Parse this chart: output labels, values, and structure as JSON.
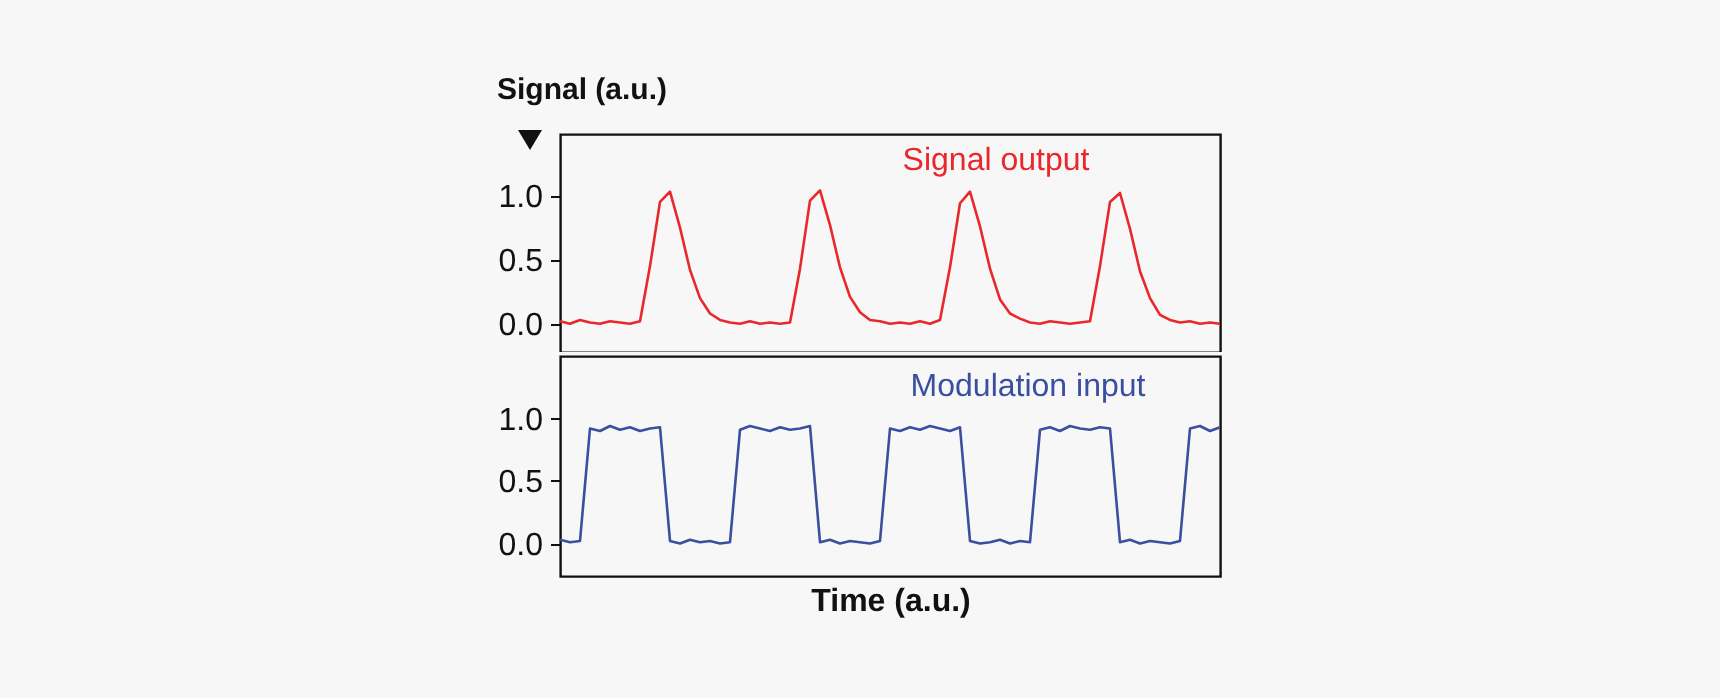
{
  "chart_data": [
    {
      "type": "line",
      "ylabel": "Signal (a.u.)",
      "categories": [
        null,
        null,
        null,
        null,
        null,
        null,
        null,
        null,
        null,
        null,
        null,
        null,
        null,
        null,
        null,
        null,
        null,
        null,
        null,
        null,
        null,
        null,
        null,
        null,
        null,
        null,
        null,
        null,
        null,
        null,
        null,
        null,
        null,
        null,
        null,
        null,
        null,
        null,
        null,
        null,
        null,
        null,
        null,
        null,
        null,
        null,
        null,
        null,
        null,
        null,
        null,
        null,
        null,
        null,
        null,
        null,
        null,
        null,
        null,
        null,
        null,
        null,
        null,
        null,
        null,
        null,
        null
      ],
      "series": [
        {
          "name": "Signal output",
          "color": "#e8282b",
          "values": [
            0.02,
            0.0,
            0.03,
            0.01,
            0.0,
            0.02,
            0.01,
            0.0,
            0.02,
            0.45,
            0.95,
            1.03,
            0.75,
            0.42,
            0.2,
            0.08,
            0.03,
            0.01,
            0.0,
            0.02,
            0.0,
            0.01,
            0.0,
            0.01,
            0.43,
            0.96,
            1.04,
            0.77,
            0.44,
            0.21,
            0.09,
            0.03,
            0.02,
            0.0,
            0.01,
            0.0,
            0.02,
            0.0,
            0.03,
            0.44,
            0.94,
            1.03,
            0.76,
            0.43,
            0.19,
            0.08,
            0.04,
            0.01,
            0.0,
            0.02,
            0.01,
            0.0,
            0.01,
            0.02,
            0.45,
            0.95,
            1.02,
            0.74,
            0.41,
            0.2,
            0.07,
            0.03,
            0.01,
            0.02,
            0.0,
            0.01,
            0.0
          ]
        }
      ],
      "ylim": [
        -0.22,
        1.48
      ],
      "yticks": [
        {
          "value": 0,
          "label": "0.0"
        },
        {
          "value": 0.5,
          "label": "0.5"
        },
        {
          "value": 1,
          "label": "1.0"
        }
      ],
      "tick_labels": "y"
    },
    {
      "type": "line",
      "xlabel": "Time (a.u.)",
      "categories": [
        null,
        null,
        null,
        null,
        null,
        null,
        null,
        null,
        null,
        null,
        null,
        null,
        null,
        null,
        null,
        null,
        null,
        null,
        null,
        null,
        null,
        null,
        null,
        null,
        null,
        null,
        null,
        null,
        null,
        null,
        null,
        null,
        null,
        null,
        null,
        null,
        null,
        null,
        null,
        null,
        null,
        null,
        null,
        null,
        null,
        null,
        null,
        null,
        null,
        null,
        null,
        null,
        null,
        null,
        null,
        null,
        null,
        null,
        null,
        null,
        null,
        null,
        null,
        null,
        null,
        null,
        null
      ],
      "series": [
        {
          "name": "Modulation input",
          "color": "#3a4fa0",
          "values": [
            0.03,
            0.01,
            0.02,
            0.92,
            0.9,
            0.94,
            0.91,
            0.93,
            0.9,
            0.92,
            0.93,
            0.02,
            0.0,
            0.03,
            0.01,
            0.02,
            0.0,
            0.01,
            0.91,
            0.94,
            0.92,
            0.9,
            0.93,
            0.91,
            0.92,
            0.94,
            0.01,
            0.03,
            0.0,
            0.02,
            0.01,
            0.0,
            0.02,
            0.92,
            0.9,
            0.93,
            0.91,
            0.94,
            0.92,
            0.9,
            0.93,
            0.02,
            0.0,
            0.01,
            0.03,
            0.0,
            0.02,
            0.01,
            0.91,
            0.93,
            0.9,
            0.94,
            0.92,
            0.91,
            0.93,
            0.92,
            0.01,
            0.03,
            0.0,
            0.02,
            0.01,
            0.0,
            0.02,
            0.92,
            0.94,
            0.9,
            0.93
          ]
        }
      ],
      "ylim": [
        -0.26,
        1.5
      ],
      "yticks": [
        {
          "value": 0,
          "label": "0.0"
        },
        {
          "value": 0.5,
          "label": "0.5"
        },
        {
          "value": 1,
          "label": "1.0"
        }
      ],
      "tick_labels": "y"
    }
  ]
}
